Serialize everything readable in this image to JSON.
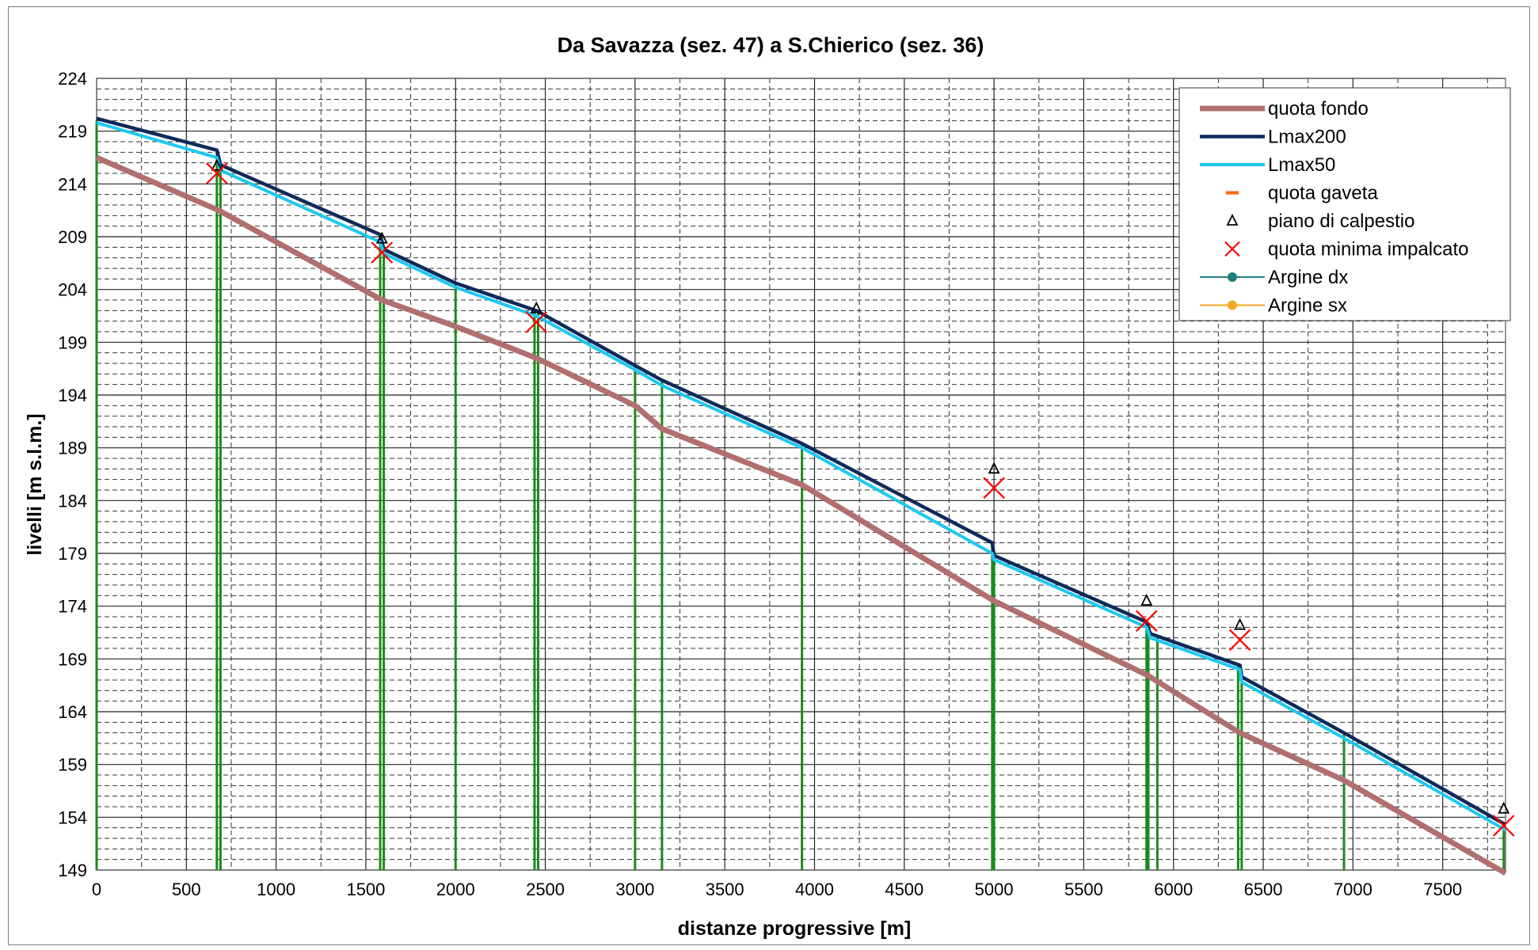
{
  "chart_data": {
    "type": "line",
    "title": "Da Savazza  (sez. 47) a S.Chierico  (sez. 36)",
    "xlabel": "distanze progressive [m]",
    "ylabel": "livelli [m s.l.m.]",
    "xlim": [
      0,
      7850
    ],
    "ylim": [
      149,
      224
    ],
    "x_ticks": [
      "0",
      "500",
      "1000",
      "1500",
      "2000",
      "2500",
      "3000",
      "3500",
      "4000",
      "4500",
      "5000",
      "5500",
      "6000",
      "6500",
      "7000",
      "7500"
    ],
    "x_tick_values": [
      0,
      500,
      1000,
      1500,
      2000,
      2500,
      3000,
      3500,
      4000,
      4500,
      5000,
      5500,
      6000,
      6500,
      7000,
      7500
    ],
    "y_ticks": [
      "224",
      "219",
      "214",
      "209",
      "204",
      "199",
      "194",
      "189",
      "184",
      "179",
      "174",
      "169",
      "164",
      "159",
      "154",
      "149"
    ],
    "y_tick_values": [
      224,
      219,
      214,
      209,
      204,
      199,
      194,
      189,
      184,
      179,
      174,
      169,
      164,
      159,
      154,
      149
    ],
    "grid": true,
    "legend_position": "top-right",
    "series": [
      {
        "name": "quota fondo",
        "color": "#b07070",
        "kind": "line",
        "x": [
          0,
          680,
          1590,
          2000,
          2450,
          3000,
          3150,
          3930,
          5000,
          5850,
          6370,
          6950,
          7850
        ],
        "y": [
          216.5,
          211.5,
          203.0,
          200.5,
          197.5,
          193.0,
          190.8,
          185.5,
          174.5,
          167.5,
          162.0,
          157.5,
          148.7
        ]
      },
      {
        "name": "Lmax200",
        "color": "#0d2a5a",
        "kind": "line",
        "x": [
          0,
          670,
          690,
          1580,
          1600,
          2000,
          2450,
          3000,
          3150,
          3930,
          4990,
          5000,
          5850,
          5870,
          6370,
          6380,
          6950,
          7850
        ],
        "y": [
          220.2,
          217.2,
          215.8,
          209.2,
          207.8,
          204.6,
          202.0,
          196.8,
          195.4,
          189.4,
          180.0,
          178.8,
          172.5,
          171.4,
          168.4,
          167.3,
          162.0,
          153.3
        ]
      },
      {
        "name": "Lmax50",
        "color": "#1ec8f0",
        "kind": "line",
        "x": [
          0,
          670,
          690,
          1580,
          1600,
          2000,
          2450,
          3000,
          3150,
          3930,
          4990,
          5000,
          5850,
          5870,
          6370,
          6380,
          6950,
          7850
        ],
        "y": [
          219.8,
          216.5,
          215.3,
          208.5,
          207.4,
          204.2,
          201.5,
          196.4,
          194.9,
          189.0,
          179.0,
          178.4,
          172.0,
          171.0,
          168.0,
          166.8,
          161.5,
          152.8
        ]
      },
      {
        "name": "quota gaveta",
        "color": "#ff6600",
        "kind": "dash-marker",
        "x": [],
        "y": []
      },
      {
        "name": "piano di calpestio",
        "color": "#000000",
        "kind": "triangle-marker",
        "x": [
          670,
          1590,
          2450,
          5000,
          5850,
          6370,
          7840
        ],
        "y": [
          215.7,
          208.8,
          202.2,
          187.0,
          174.5,
          172.2,
          154.8
        ]
      },
      {
        "name": "quota minima impalcato",
        "color": "#ff0000",
        "kind": "x-marker",
        "x": [
          670,
          1590,
          2450,
          5000,
          5850,
          6370,
          7840
        ],
        "y": [
          215.0,
          207.5,
          200.9,
          185.2,
          172.6,
          170.8,
          153.2
        ]
      },
      {
        "name": "Argine dx",
        "color": "#1f7f7f",
        "kind": "line-circle",
        "x": [],
        "y": []
      },
      {
        "name": "Argine sx",
        "color": "#f5a623",
        "kind": "line-circle",
        "x": [],
        "y": []
      }
    ],
    "section_lines": {
      "color": "#1a8a1a",
      "x": [
        670,
        690,
        1580,
        1600,
        2000,
        2440,
        2460,
        3000,
        3150,
        3930,
        4990,
        5000,
        5850,
        5860,
        5910,
        6360,
        6380,
        6950,
        7840
      ],
      "y_top": [
        217.2,
        215.8,
        209.2,
        207.8,
        204.6,
        202.0,
        201.8,
        196.8,
        195.4,
        189.4,
        180.0,
        178.8,
        172.5,
        172.3,
        171.2,
        168.4,
        167.3,
        162.0,
        153.4
      ]
    }
  }
}
